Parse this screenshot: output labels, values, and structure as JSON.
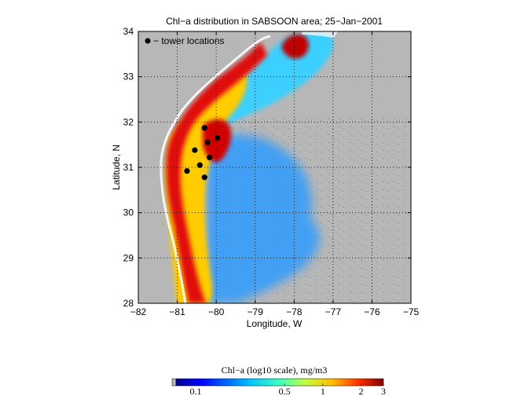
{
  "figure": {
    "title": "Chl−a distribution in SABSOON area; 25−Jan−2001",
    "xlabel": "Longitude, W",
    "ylabel": "Latitude, N",
    "legend_label": "− tower locations",
    "xticks": [
      "−82",
      "−81",
      "−80",
      "−79",
      "−78",
      "−77",
      "−76",
      "−75"
    ],
    "yticks": [
      "28",
      "29",
      "30",
      "31",
      "32",
      "33",
      "34"
    ],
    "colorbar": {
      "title": "Chl−a (log10 scale), mg/m3",
      "ticks": [
        "0.1",
        "0.5",
        "1",
        "2",
        "3"
      ]
    },
    "colors": {
      "land": "#b7b7b7",
      "high": "#c00000",
      "mid": "#ffb000",
      "low": "#2fa8ff",
      "marker": "#000000",
      "legend_text": "#0000ff"
    }
  },
  "chart_data": {
    "type": "scatter",
    "title": "Chl−a distribution in SABSOON area; 25−Jan−2001",
    "xlabel": "Longitude, W",
    "ylabel": "Latitude, N",
    "xlim": [
      -82,
      -75
    ],
    "ylim": [
      28,
      34
    ],
    "grid": true,
    "legend": "top-left",
    "series": [
      {
        "name": "− tower locations",
        "points": [
          {
            "x": -80.3,
            "y": 31.87
          },
          {
            "x": -79.97,
            "y": 31.65
          },
          {
            "x": -80.22,
            "y": 31.55
          },
          {
            "x": -80.55,
            "y": 31.38
          },
          {
            "x": -80.17,
            "y": 31.22
          },
          {
            "x": -80.42,
            "y": 31.05
          },
          {
            "x": -80.75,
            "y": 30.92
          },
          {
            "x": -80.3,
            "y": 30.78
          }
        ]
      }
    ],
    "colorbar_ticks": [
      0.1,
      0.5,
      1,
      2,
      3
    ]
  }
}
